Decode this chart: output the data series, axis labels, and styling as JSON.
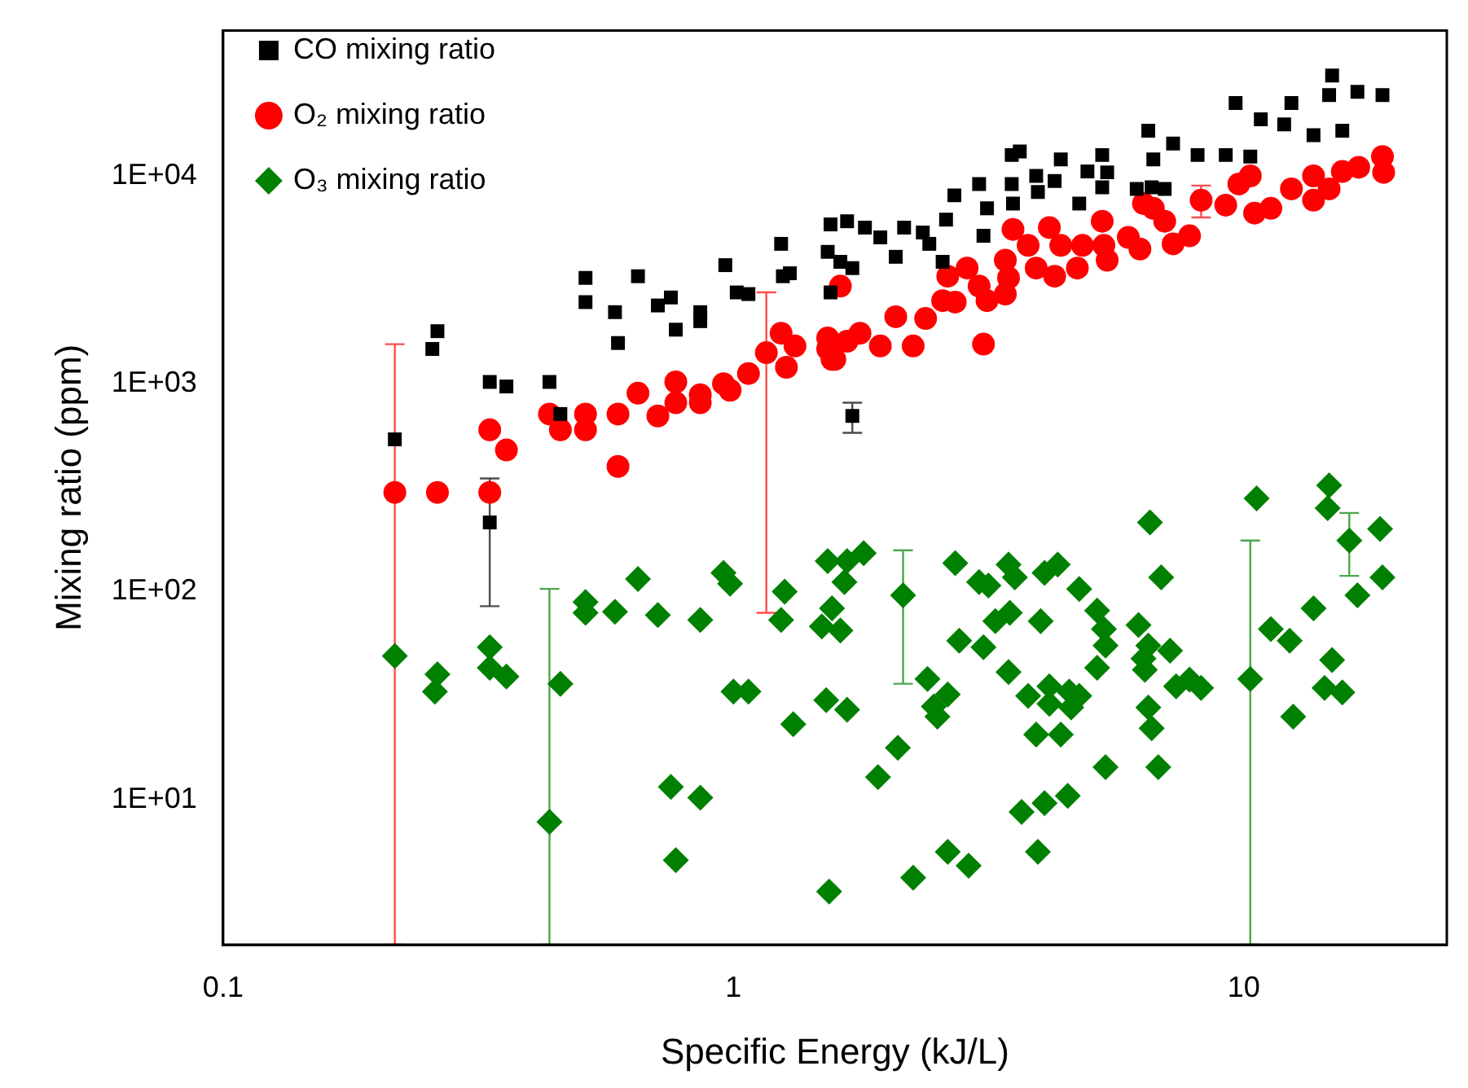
{
  "chart_data": {
    "type": "scatter",
    "xlabel": "Specific Energy (kJ/L)",
    "ylabel": "Mixing ratio (ppm)",
    "log": "xy",
    "grid": false,
    "legend": "top left",
    "xlim": [
      0.1,
      25
    ],
    "xticks": [
      0.1,
      1,
      10
    ],
    "ylim": [
      2,
      50000
    ],
    "yticks": [
      {
        "value": 10,
        "label": "1E+01"
      },
      {
        "value": 100,
        "label": "1E+02"
      },
      {
        "value": 1000,
        "label": "1E+03"
      },
      {
        "value": 10000,
        "label": "1E+04"
      }
    ],
    "series": [
      {
        "name": "CO mixing ratio",
        "color": "#000000",
        "marker": "square",
        "x": [
          0.333,
          1.71,
          0.217,
          0.257,
          0.263,
          0.333,
          0.359,
          0.436,
          0.458,
          0.513,
          0.513,
          0.65,
          0.586,
          0.594,
          0.711,
          0.754,
          0.771,
          0.861,
          0.861,
          0.964,
          1.015,
          1.07,
          1.24,
          1.29,
          1.25,
          1.55,
          1.55,
          1.53,
          1.67,
          1.62,
          1.71,
          1.81,
          1.94,
          2.08,
          2.16,
          2.35,
          2.42,
          2.57,
          2.71,
          2.61,
          3.03,
          3.14,
          3.09,
          3.51,
          3.64,
          3.51,
          3.53,
          3.92,
          3.95,
          4.38,
          4.26,
          4.76,
          4.94,
          5.28,
          5.28,
          5.4,
          6.17,
          6.5,
          6.65,
          6.6,
          7.27,
          7.0,
          8.12,
          9.22,
          10.3,
          9.64,
          10.8,
          12.0,
          12.4,
          13.7,
          14.9,
          14.7,
          15.6,
          16.7,
          18.7
        ],
        "values": [
          215,
          700,
          540,
          1470,
          1790,
          1020,
          970,
          1020,
          715,
          3230,
          2470,
          3290,
          2210,
          1570,
          2380,
          2600,
          1820,
          2210,
          2000,
          3720,
          2750,
          2700,
          4710,
          3400,
          3290,
          2750,
          5840,
          4310,
          6050,
          3860,
          3600,
          5640,
          5060,
          4080,
          5640,
          5340,
          4710,
          3860,
          8060,
          6160,
          9140,
          6980,
          5150,
          12600,
          13100,
          9140,
          7360,
          10000,
          8360,
          12000,
          9450,
          7360,
          10500,
          12600,
          8820,
          10400,
          8660,
          16500,
          12000,
          8820,
          14300,
          8660,
          12600,
          12600,
          12400,
          22400,
          18700,
          17700,
          22400,
          15700,
          30400,
          24500,
          16500,
          25400,
          24500
        ],
        "errors": [
          [
            85,
            350
          ],
          [
            580,
            810
          ],
          null,
          null,
          null,
          null,
          null,
          null,
          null,
          null,
          null,
          null,
          null,
          null,
          null,
          null,
          null,
          null,
          null,
          null,
          null,
          null,
          null,
          null,
          null,
          null,
          null,
          null,
          null,
          null,
          null,
          null,
          null,
          null,
          null,
          null,
          null,
          null,
          null,
          null,
          null,
          null,
          null,
          null,
          null,
          null,
          null,
          null,
          null,
          null,
          null,
          null,
          null,
          null,
          null,
          null,
          null,
          null,
          null,
          null,
          null,
          null,
          null,
          null,
          null,
          null,
          null,
          null,
          null,
          null,
          null,
          null,
          null,
          null,
          null
        ]
      },
      {
        "name": "O₂ mixing ratio",
        "color": "#ff0000",
        "marker": "circle",
        "x": [
          0.217,
          1.16,
          8.25,
          0.263,
          0.333,
          0.333,
          0.359,
          0.436,
          0.458,
          0.513,
          0.513,
          0.594,
          0.594,
          0.65,
          0.711,
          0.771,
          0.771,
          0.861,
          0.861,
          0.956,
          0.985,
          1.07,
          1.24,
          1.27,
          1.32,
          1.53,
          1.56,
          1.62,
          1.53,
          1.58,
          1.67,
          1.77,
          1.94,
          2.08,
          2.25,
          2.38,
          2.57,
          2.72,
          2.63,
          2.87,
          3.03,
          3.14,
          3.09,
          3.41,
          3.46,
          3.41,
          3.53,
          3.78,
          3.92,
          4.16,
          4.26,
          4.38,
          4.72,
          4.83,
          5.28,
          5.32,
          5.4,
          5.94,
          6.26,
          6.36,
          6.65,
          7.0,
          7.27,
          7.83,
          9.22,
          9.78,
          10.3,
          10.5,
          11.3,
          12.4,
          13.7,
          13.7,
          14.7,
          15.6,
          16.8,
          18.7,
          18.8
        ],
        "values": [
          300,
          1410,
          7640,
          300,
          300,
          600,
          480,
          715,
          600,
          715,
          600,
          715,
          400,
          900,
          700,
          810,
          1020,
          885,
          810,
          1000,
          930,
          1120,
          1750,
          1200,
          1520,
          1660,
          1310,
          2950,
          1470,
          1310,
          1600,
          1750,
          1520,
          2100,
          1520,
          2060,
          2510,
          2470,
          3290,
          3600,
          2950,
          2510,
          1550,
          2700,
          3230,
          3930,
          5530,
          4630,
          3600,
          5640,
          3290,
          4630,
          3600,
          4630,
          6050,
          4630,
          3930,
          5060,
          4450,
          7360,
          6980,
          6050,
          4710,
          5150,
          7230,
          9140,
          10000,
          6620,
          6980,
          8660,
          10000,
          7640,
          8660,
          10500,
          11000,
          12400,
          10400
        ],
        "errors": [
          [
            2,
            1550
          ],
          [
            79,
            2750
          ],
          [
            6310,
            8980
          ],
          null,
          null,
          null,
          null,
          null,
          null,
          null,
          null,
          null,
          null,
          null,
          null,
          null,
          null,
          null,
          null,
          null,
          null,
          null,
          null,
          null,
          null,
          null,
          null,
          null,
          null,
          null,
          null,
          null,
          null,
          null,
          null,
          null,
          null,
          null,
          null,
          null,
          null,
          null,
          null,
          null,
          null,
          null,
          null,
          null,
          null,
          null,
          null,
          null,
          null,
          null,
          null,
          null,
          null,
          null,
          null,
          null,
          null,
          null,
          null,
          null,
          null,
          null,
          null,
          null,
          null,
          null,
          null,
          null,
          null,
          null,
          null,
          null,
          null
        ]
      },
      {
        "name": "O₃ mixing ratio",
        "color": "#008000",
        "marker": "diamond",
        "x": [
          0.436,
          2.15,
          10.3,
          16.1,
          0.217,
          0.263,
          0.26,
          0.333,
          0.333,
          0.359,
          0.458,
          0.513,
          0.513,
          0.586,
          0.65,
          0.711,
          0.754,
          0.861,
          0.861,
          0.771,
          0.956,
          0.985,
          1.0,
          1.07,
          1.26,
          1.24,
          1.31,
          1.52,
          1.54,
          1.53,
          1.56,
          1.49,
          1.62,
          1.67,
          1.65,
          1.67,
          1.8,
          2.1,
          1.92,
          2.4,
          2.47,
          2.63,
          2.51,
          2.72,
          2.77,
          3.09,
          3.03,
          3.16,
          3.46,
          3.26,
          3.48,
          3.46,
          3.56,
          4.0,
          4.07,
          4.32,
          3.78,
          4.16,
          4.16,
          4.55,
          4.76,
          4.59,
          3.92,
          4.38,
          3.67,
          4.07,
          4.52,
          2.63,
          2.89,
          2.25,
          3.95,
          4.76,
          5.16,
          5.32,
          5.36,
          5.16,
          5.36,
          6.55,
          6.89,
          6.22,
          6.5,
          6.36,
          6.4,
          7.17,
          6.5,
          6.6,
          6.8,
          7.37,
          7.83,
          8.25,
          10.6,
          11.3,
          12.3,
          13.7,
          12.5,
          14.9,
          14.4,
          15.6,
          14.7,
          14.6,
          16.7,
          18.5,
          18.7
        ],
        "values": [
          7.8,
          96,
          38,
          176,
          49,
          40,
          33,
          54,
          43,
          39,
          36,
          89,
          79,
          80,
          115,
          77,
          11.5,
          73,
          10.2,
          5.1,
          123,
          109,
          33,
          33,
          100,
          73,
          23,
          30,
          3.6,
          140,
          83,
          68,
          65,
          27,
          111,
          140,
          153,
          17.7,
          12.8,
          38,
          28,
          32,
          25,
          137,
          58,
          54,
          111,
          107,
          41,
          72,
          79,
          135,
          117,
          72,
          123,
          135,
          31.5,
          35,
          28.8,
          33,
          31.5,
          27.7,
          20.5,
          20.5,
          8.7,
          9.6,
          10.4,
          5.6,
          4.8,
          4.2,
          5.6,
          103,
          81,
          66,
          55,
          43,
          14.3,
          215,
          117,
          69,
          55,
          47.6,
          42,
          52,
          27.7,
          22,
          14.3,
          35,
          37.7,
          34.4,
          281,
          66,
          58,
          83,
          25,
          46.8,
          34.4,
          32.7,
          324,
          252,
          96,
          200,
          117
        ],
        "errors": [
          [
            2,
            103
          ],
          [
            36,
            158
          ],
          [
            2,
            176
          ],
          [
            119,
            239
          ],
          null,
          null,
          null,
          null,
          null,
          null,
          null,
          null,
          null,
          null,
          null,
          null,
          null,
          null,
          null,
          null,
          null,
          null,
          null,
          null,
          null,
          null,
          null,
          null,
          null,
          null,
          null,
          null,
          null,
          null,
          null,
          null,
          null,
          null,
          null,
          null,
          null,
          null,
          null,
          null,
          null,
          null,
          null,
          null,
          null,
          null,
          null,
          null,
          null,
          null,
          null,
          null,
          null,
          null,
          null,
          null,
          null,
          null,
          null,
          null,
          null,
          null,
          null,
          null,
          null,
          null,
          null,
          null,
          null,
          null,
          null,
          null,
          null,
          null,
          null,
          null,
          null,
          null,
          null,
          null,
          null,
          null,
          null,
          null,
          null,
          null,
          null,
          null,
          null,
          null,
          null,
          null,
          null,
          null,
          null,
          null,
          null,
          null,
          null
        ]
      }
    ]
  }
}
